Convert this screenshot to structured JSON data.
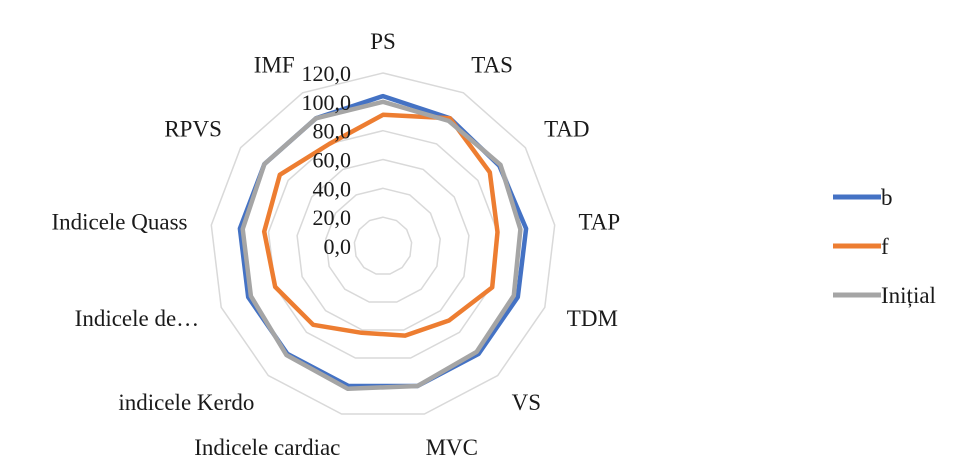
{
  "chart_data": {
    "type": "radar",
    "title": "",
    "categories": [
      "PS",
      "TAS",
      "TAD",
      "TAP",
      "TDM",
      "VS",
      "MVC",
      "Indicele cardiac",
      "indicele Kerdo",
      "Indicele de…",
      "Indicele Quass",
      "RPVS",
      "IMF"
    ],
    "rlim": [
      0,
      120
    ],
    "ticks": [
      "0,0",
      "20,0",
      "40,0",
      "60,0",
      "80,0",
      "100,0",
      "120,0"
    ],
    "grid": true,
    "legend_position": "right",
    "series": [
      {
        "name": "b",
        "color": "#4472c4",
        "values": [
          104,
          100,
          98,
          100,
          100,
          100,
          100,
          100,
          100,
          100,
          100,
          100,
          100
        ]
      },
      {
        "name": "f",
        "color": "#ed7d31",
        "values": [
          91,
          100,
          90,
          80,
          81,
          69,
          64,
          62,
          73,
          80,
          83,
          87,
          80
        ]
      },
      {
        "name": "Inițial",
        "color": "#a5a5a5",
        "values": [
          100,
          98,
          99,
          96,
          97,
          98,
          100,
          102,
          101,
          98,
          98,
          100,
          100
        ]
      }
    ]
  }
}
